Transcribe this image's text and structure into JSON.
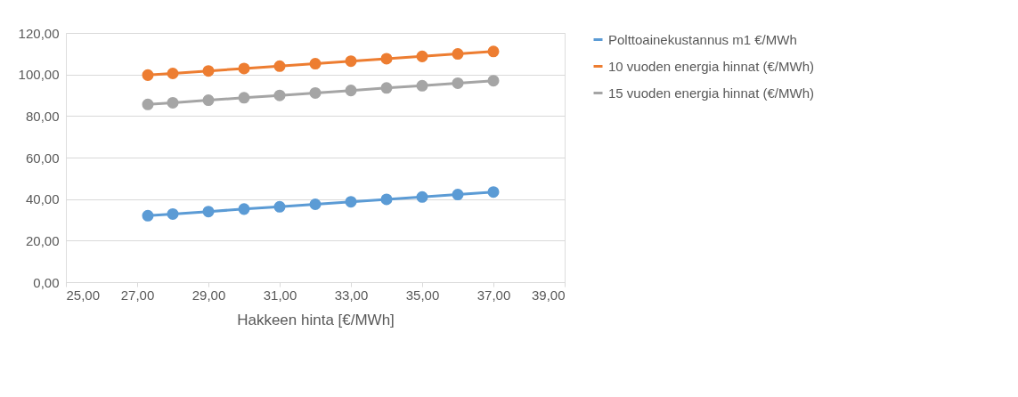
{
  "chart_data": {
    "type": "line",
    "xlabel": "Hakkeen hinta [€/MWh]",
    "x": [
      27.3,
      28,
      29,
      30,
      31,
      32,
      33,
      34,
      35,
      36,
      37
    ],
    "series": [
      {
        "name": "Polttoainekustannus m1 €/MWh",
        "color": "#5b9bd5",
        "values": [
          32.0,
          32.8,
          34.0,
          35.2,
          36.3,
          37.5,
          38.7,
          39.9,
          41.0,
          42.2,
          43.4
        ]
      },
      {
        "name": "10 vuoden energia hinnat (€/MWh)",
        "color": "#ed7d31",
        "values": [
          99.7,
          100.5,
          101.7,
          102.9,
          104.0,
          105.2,
          106.4,
          107.6,
          108.7,
          109.9,
          111.1
        ]
      },
      {
        "name": "15 vuoden energia hinnat (€/MWh)",
        "color": "#a5a5a5",
        "values": [
          85.6,
          86.4,
          87.6,
          88.8,
          89.9,
          91.1,
          92.3,
          93.5,
          94.6,
          95.8,
          97.0
        ]
      }
    ],
    "xlim": [
      25,
      39
    ],
    "xticks": [
      {
        "value": 25,
        "label": "25,00"
      },
      {
        "value": 27,
        "label": "27,00"
      },
      {
        "value": 29,
        "label": "29,00"
      },
      {
        "value": 31,
        "label": "31,00"
      },
      {
        "value": 33,
        "label": "33,00"
      },
      {
        "value": 35,
        "label": "35,00"
      },
      {
        "value": 37,
        "label": "37,00"
      },
      {
        "value": 39,
        "label": "39,00"
      }
    ],
    "ylim": [
      0,
      120
    ],
    "yticks": [
      {
        "value": 0,
        "label": "0,00"
      },
      {
        "value": 20,
        "label": "20,00"
      },
      {
        "value": 40,
        "label": "40,00"
      },
      {
        "value": 60,
        "label": "60,00"
      },
      {
        "value": 80,
        "label": "80,00"
      },
      {
        "value": 100,
        "label": "100,00"
      },
      {
        "value": 120,
        "label": "120,00"
      }
    ],
    "grid": "y",
    "legend": "right",
    "marker": "circle",
    "line_style": "solid"
  }
}
